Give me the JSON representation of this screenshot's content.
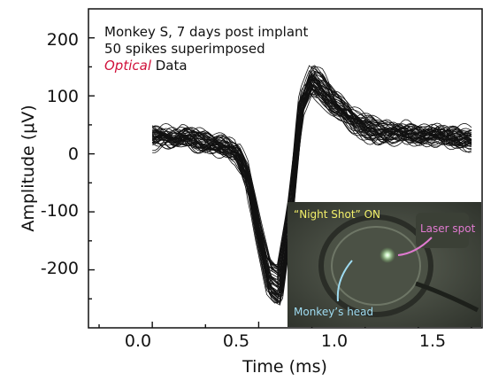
{
  "chart_data": {
    "type": "line",
    "xlabel": "Time (ms)",
    "ylabel": "Amplitude (μV)",
    "xlim": [
      -0.3,
      1.55
    ],
    "ylim": [
      -300,
      250
    ],
    "x_ticks": [
      0.0,
      0.5,
      1.0,
      1.5
    ],
    "x_tick_labels": [
      "0.0",
      "0.5",
      "1.0",
      "1.5"
    ],
    "y_ticks": [
      -200,
      -100,
      0,
      100,
      200
    ],
    "y_tick_labels": [
      "-200",
      "-100",
      "0",
      "100",
      "200"
    ],
    "grid": false,
    "series_count": 50,
    "trace_color": "#111111",
    "mean_waveform": {
      "x": [
        0.0,
        0.05,
        0.1,
        0.15,
        0.2,
        0.25,
        0.3,
        0.35,
        0.4,
        0.45,
        0.5,
        0.55,
        0.6,
        0.65,
        0.7,
        0.75,
        0.8,
        0.85,
        0.9,
        0.95,
        1.0,
        1.05,
        1.1,
        1.15,
        1.2,
        1.25,
        1.3,
        1.35,
        1.4,
        1.45,
        1.5
      ],
      "y": [
        30,
        30,
        25,
        30,
        25,
        20,
        15,
        10,
        0,
        -40,
        -130,
        -210,
        -225,
        -100,
        80,
        125,
        110,
        85,
        70,
        55,
        45,
        40,
        38,
        35,
        33,
        32,
        30,
        30,
        28,
        25,
        25
      ]
    },
    "annotations": {
      "line1": "Monkey S, 7 days post implant",
      "line2": "50 spikes superimposed",
      "line3_emphasis": "Optical",
      "line3_rest": " Data"
    },
    "annotation_emphasis_color": "#d0103a",
    "inset": {
      "title": "“Night Shot” ON",
      "laser_label": "Laser spot",
      "head_label": "Monkey’s head",
      "title_color": "#f2ef6a",
      "laser_color": "#e07ad0",
      "head_color": "#9fdcf2"
    }
  }
}
